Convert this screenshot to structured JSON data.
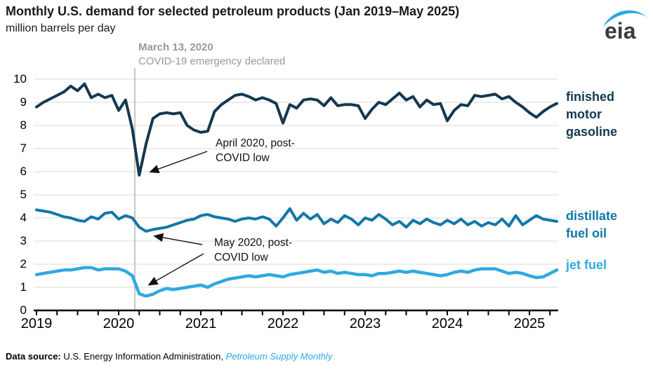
{
  "header": {
    "title": "Monthly U.S. demand for selected petroleum products (Jan 2019–May 2025)",
    "subtitle": "million barrels per day",
    "logo_text": "eia"
  },
  "annotations": {
    "event": {
      "line1": "March 13, 2020",
      "line2": "COVID-19 emergency declared"
    },
    "april_low": {
      "line1": "April 2020, post-",
      "line2": "COVID low"
    },
    "may_low": {
      "line1": "May 2020, post-",
      "line2": "COVID low"
    }
  },
  "footer": {
    "label": "Data source:",
    "text": " U.S. Energy Information Administration, ",
    "link": "Petroleum Supply Monthly"
  },
  "colors": {
    "gasoline": "#14384f",
    "distillate": "#1277a8",
    "jet": "#2fa9e0",
    "event_line": "#b3b3b3",
    "event_text": "#999999",
    "gridline": "#d8d8d8",
    "axis": "#000000",
    "link_blue": "#2ba7df",
    "logo_swoosh": "#2aa8e0"
  },
  "chart_data": {
    "type": "line",
    "title": "Monthly U.S. demand for selected petroleum products (Jan 2019–May 2025)",
    "ylabel": "million barrels per day",
    "xlabel": "",
    "x_start": "2019-01",
    "x_end": "2025-05",
    "x_tick_years": [
      "2019",
      "2020",
      "2021",
      "2022",
      "2023",
      "2024",
      "2025"
    ],
    "y_ticks": [
      0,
      1,
      2,
      3,
      4,
      5,
      6,
      7,
      8,
      9,
      10
    ],
    "ylim": [
      0,
      10
    ],
    "grid": true,
    "legend_position": "right",
    "event_line_date": "2020-03-13",
    "series": [
      {
        "id": "finished-motor-gasoline",
        "name": "finished motor gasoline",
        "label_lines": [
          "finished",
          "motor",
          "gasoline"
        ],
        "color": "#14384f",
        "annotated_low": {
          "month": "2020-04",
          "value": 5.85
        },
        "values": [
          8.8,
          9.0,
          9.15,
          9.3,
          9.45,
          9.7,
          9.5,
          9.8,
          9.2,
          9.35,
          9.2,
          9.3,
          8.65,
          9.1,
          7.85,
          5.85,
          7.2,
          8.3,
          8.5,
          8.55,
          8.5,
          8.55,
          8.0,
          7.8,
          7.7,
          7.75,
          8.6,
          8.9,
          9.1,
          9.3,
          9.35,
          9.25,
          9.1,
          9.2,
          9.1,
          8.95,
          8.1,
          8.9,
          8.75,
          9.1,
          9.15,
          9.1,
          8.85,
          9.2,
          8.85,
          8.9,
          8.9,
          8.85,
          8.3,
          8.7,
          9.0,
          8.9,
          9.15,
          9.4,
          9.1,
          9.25,
          8.8,
          9.1,
          8.9,
          8.95,
          8.2,
          8.65,
          8.9,
          8.85,
          9.3,
          9.25,
          9.3,
          9.35,
          9.15,
          9.25,
          9.0,
          8.8,
          8.55,
          8.35,
          8.6,
          8.8,
          8.95
        ]
      },
      {
        "id": "distillate-fuel-oil",
        "name": "distillate fuel oil",
        "label_lines": [
          "distillate",
          "fuel oil"
        ],
        "color": "#1277a8",
        "annotated_low": {
          "month": "2020-05",
          "value": 3.42
        },
        "values": [
          4.35,
          4.3,
          4.25,
          4.15,
          4.05,
          4.0,
          3.9,
          3.85,
          4.05,
          3.95,
          4.2,
          4.25,
          3.95,
          4.1,
          4.0,
          3.6,
          3.42,
          3.5,
          3.55,
          3.6,
          3.7,
          3.8,
          3.9,
          3.95,
          4.1,
          4.15,
          4.05,
          4.0,
          3.95,
          3.85,
          3.95,
          4.0,
          3.95,
          4.05,
          3.95,
          3.65,
          4.0,
          4.4,
          3.9,
          4.2,
          3.95,
          4.15,
          3.75,
          3.95,
          3.8,
          4.1,
          3.95,
          3.7,
          4.0,
          3.9,
          4.15,
          3.95,
          3.7,
          3.85,
          3.6,
          3.9,
          3.75,
          3.95,
          3.8,
          3.7,
          3.9,
          3.75,
          3.95,
          3.7,
          3.85,
          3.65,
          3.8,
          3.7,
          3.95,
          3.65,
          4.1,
          3.7,
          3.9,
          4.1,
          3.95,
          3.9,
          3.85
        ]
      },
      {
        "id": "jet-fuel",
        "name": "jet fuel",
        "label_lines": [
          "jet fuel"
        ],
        "color": "#2fa9e0",
        "annotated_low": {
          "month": "2020-05",
          "value": 0.62
        },
        "values": [
          1.55,
          1.6,
          1.65,
          1.7,
          1.75,
          1.75,
          1.8,
          1.85,
          1.85,
          1.75,
          1.8,
          1.8,
          1.8,
          1.7,
          1.5,
          0.72,
          0.62,
          0.7,
          0.85,
          0.95,
          0.9,
          0.95,
          1.0,
          1.05,
          1.1,
          1.0,
          1.15,
          1.25,
          1.35,
          1.4,
          1.45,
          1.5,
          1.45,
          1.5,
          1.55,
          1.5,
          1.45,
          1.55,
          1.6,
          1.65,
          1.7,
          1.75,
          1.65,
          1.7,
          1.6,
          1.65,
          1.6,
          1.55,
          1.55,
          1.5,
          1.6,
          1.6,
          1.65,
          1.7,
          1.65,
          1.7,
          1.65,
          1.6,
          1.55,
          1.5,
          1.55,
          1.65,
          1.7,
          1.65,
          1.75,
          1.8,
          1.8,
          1.8,
          1.7,
          1.6,
          1.65,
          1.6,
          1.5,
          1.42,
          1.45,
          1.6,
          1.75
        ]
      }
    ]
  }
}
